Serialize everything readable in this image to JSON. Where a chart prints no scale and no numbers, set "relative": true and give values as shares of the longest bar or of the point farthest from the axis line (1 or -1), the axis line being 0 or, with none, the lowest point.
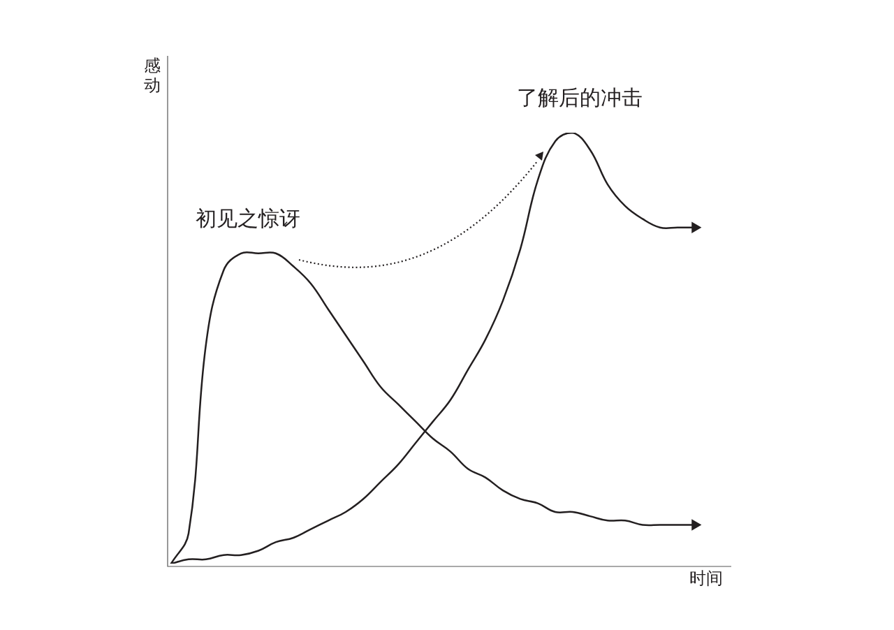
{
  "chart_data": {
    "type": "line",
    "relative": true,
    "xlabel": "时间",
    "ylabel": "感动",
    "legend": false,
    "marker": "none",
    "line_style": "solid",
    "categories": [
      null,
      null,
      null,
      null,
      null,
      null,
      null,
      null,
      null,
      null,
      null,
      null,
      null,
      null,
      null,
      null,
      null,
      null,
      null,
      null,
      null,
      null,
      null,
      null,
      null,
      null,
      null,
      null,
      null,
      null,
      null
    ],
    "series": [
      {
        "color": "#231f20",
        "values": [
          0,
          0.07,
          0.51,
          0.68,
          0.72,
          0.72,
          0.72,
          0.69,
          0.65,
          0.59,
          0.53,
          0.47,
          0.41,
          0.37,
          0.33,
          0.29,
          0.26,
          0.22,
          0.2,
          0.17,
          0.15,
          0.14,
          0.12,
          0.12,
          0.11,
          0.1,
          0.1,
          0.09,
          0.09,
          0.09,
          0.09
        ]
      },
      {
        "color": "#231f20",
        "values": [
          0,
          0.01,
          0.01,
          0.02,
          0.02,
          0.03,
          0.05,
          0.06,
          0.08,
          0.1,
          0.12,
          0.15,
          0.19,
          0.23,
          0.28,
          0.33,
          0.38,
          0.45,
          0.52,
          0.61,
          0.73,
          0.89,
          0.98,
          1,
          0.96,
          0.88,
          0.83,
          0.8,
          0.78,
          0.78,
          0.78
        ]
      }
    ],
    "annotations": [
      "初见之惊讶",
      "了解后的冲击"
    ]
  }
}
